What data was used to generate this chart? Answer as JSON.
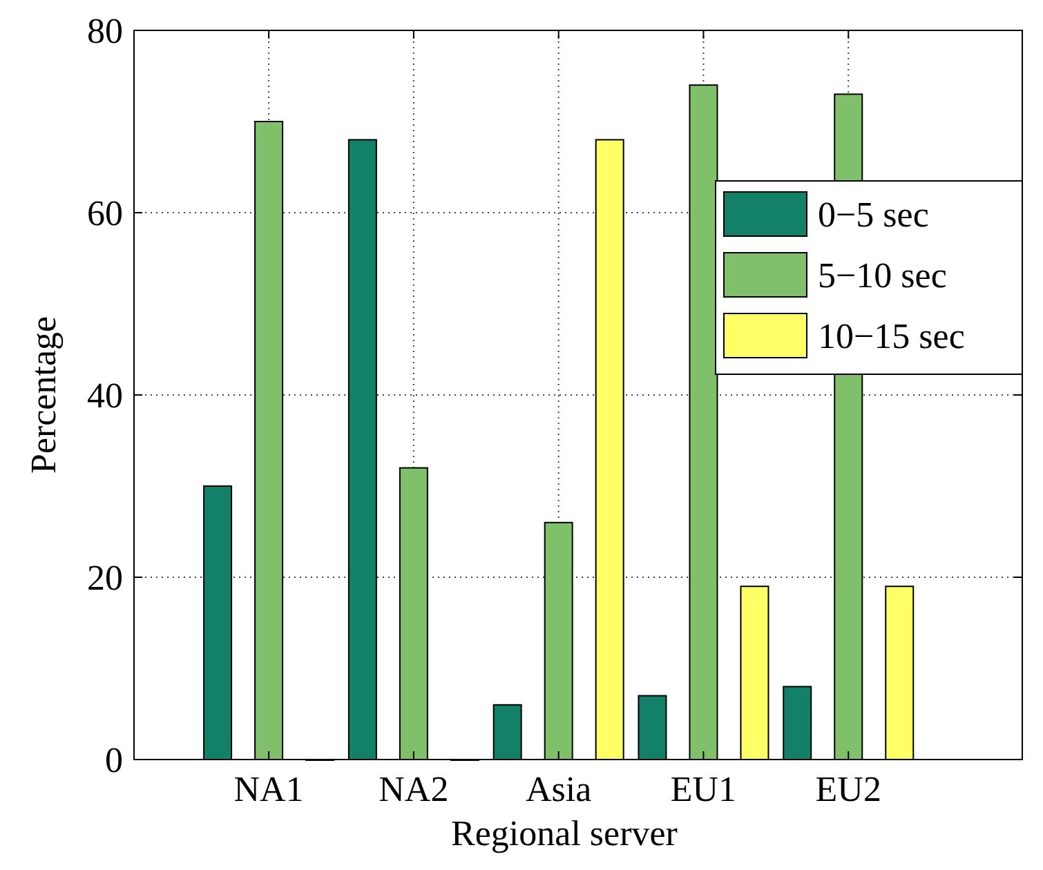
{
  "chart_data": {
    "type": "bar",
    "xlabel": "Regional server",
    "ylabel": "Percentage",
    "categories": [
      "NA1",
      "NA2",
      "Asia",
      "EU1",
      "EU2"
    ],
    "series": [
      {
        "name": "0−5 sec",
        "color": "#138068",
        "values": [
          30,
          68,
          6,
          7,
          8
        ]
      },
      {
        "name": "5−10 sec",
        "color": "#80c06a",
        "values": [
          70,
          32,
          26,
          74,
          73
        ]
      },
      {
        "name": "10−15 sec",
        "color": "#ffff66",
        "values": [
          0,
          0,
          68,
          19,
          19
        ]
      }
    ],
    "ylim": [
      0,
      80
    ],
    "yticks": [
      0,
      20,
      40,
      60,
      80
    ],
    "grid": true,
    "legend": "top right"
  }
}
